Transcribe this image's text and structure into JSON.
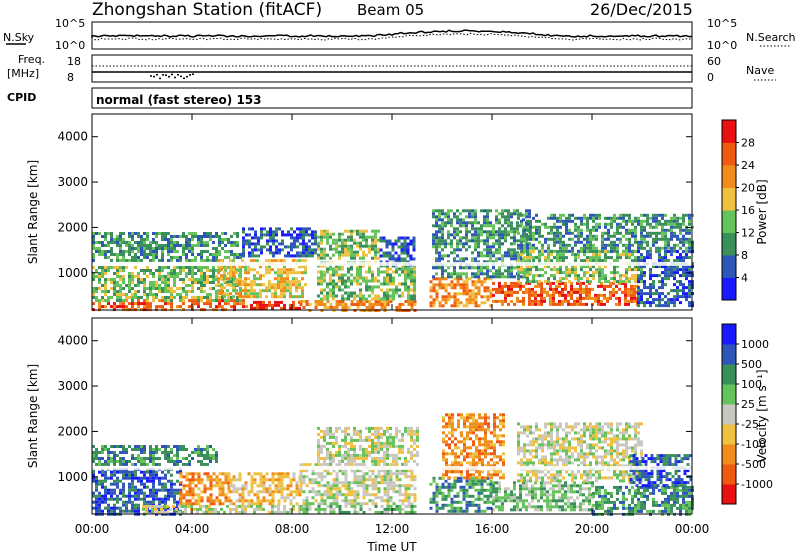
{
  "header": {
    "station": "Zhongshan Station (fitACF)",
    "beam": "Beam 05",
    "date": "26/Dec/2015"
  },
  "strip_labels": {
    "nsky": "N.Sky",
    "freq_line1": "Freq.",
    "freq_line2": "[MHz]",
    "cpid": "CPID",
    "nsearch": "N.Search",
    "nave": "Nave",
    "cpid_text": "normal (fast stereo) 153"
  },
  "strip_ticks": {
    "noise_left": [
      "10^5",
      "10^0"
    ],
    "noise_right": [
      "10^5",
      "10^0"
    ],
    "freq_left": [
      "18",
      "8"
    ],
    "freq_right": [
      "60",
      "0"
    ]
  },
  "colors": {
    "power": [
      "#1a1aff",
      "#2e55b8",
      "#3a8f5a",
      "#66c25a",
      "#f0c040",
      "#f08c1a",
      "#f05a10",
      "#e81010"
    ],
    "velocity": [
      "#e81010",
      "#f05a10",
      "#f08c1a",
      "#f0c040",
      "#c8c8c0",
      "#66c25a",
      "#3a8f5a",
      "#2e55b8",
      "#1a1aff"
    ],
    "velocity_ground": "#c8c8c0"
  },
  "chart_data": [
    {
      "type": "heatmap",
      "panel": "power",
      "ylabel": "Slant Range [km]",
      "xlabel": "",
      "yticks": [
        "4000",
        "3000",
        "2000",
        "1000"
      ],
      "ylim": [
        180,
        4500
      ],
      "xlim_hours": [
        0,
        24
      ],
      "colorbar_label": "Power [dB]",
      "colorbar_ticks": [
        "28",
        "24",
        "20",
        "16",
        "12",
        "8",
        "4"
      ],
      "colorbar_range": [
        0,
        32
      ],
      "regions": [
        {
          "t0": 0.0,
          "t1": 6.2,
          "r0": 200,
          "r1": 420,
          "level": 6
        },
        {
          "t0": 6.2,
          "t1": 8.3,
          "r0": 200,
          "r1": 380,
          "level": 7
        },
        {
          "t0": 8.3,
          "t1": 12.9,
          "r0": 200,
          "r1": 400,
          "level": 5
        },
        {
          "t0": 0.0,
          "t1": 6.0,
          "r0": 420,
          "r1": 1150,
          "level": 3
        },
        {
          "t0": 0.0,
          "t1": 6.0,
          "r0": 1250,
          "r1": 1900,
          "level": 2
        },
        {
          "t0": 5.0,
          "t1": 8.5,
          "r0": 500,
          "r1": 1300,
          "level": 4
        },
        {
          "t0": 6.0,
          "t1": 9.0,
          "r0": 1400,
          "r1": 2000,
          "level": 1
        },
        {
          "t0": 9.0,
          "t1": 12.9,
          "r0": 400,
          "r1": 1250,
          "level": 3
        },
        {
          "t0": 9.0,
          "t1": 11.5,
          "r0": 1300,
          "r1": 1950,
          "level": 3
        },
        {
          "t0": 11.5,
          "t1": 12.9,
          "r0": 1200,
          "r1": 1800,
          "level": 1
        },
        {
          "t0": 13.5,
          "t1": 16.0,
          "r0": 250,
          "r1": 900,
          "level": 5
        },
        {
          "t0": 13.6,
          "t1": 17.5,
          "r0": 900,
          "r1": 2400,
          "level": 2
        },
        {
          "t0": 16.0,
          "t1": 21.8,
          "r0": 280,
          "r1": 800,
          "level": 6
        },
        {
          "t0": 17.0,
          "t1": 22.0,
          "r0": 800,
          "r1": 1500,
          "level": 3
        },
        {
          "t0": 17.0,
          "t1": 24.0,
          "r0": 1500,
          "r1": 2300,
          "level": 2
        },
        {
          "t0": 21.8,
          "t1": 24.0,
          "r0": 250,
          "r1": 1500,
          "level": 1
        }
      ]
    },
    {
      "type": "heatmap",
      "panel": "velocity",
      "ylabel": "Slant Range [km]",
      "xlabel": "Time UT",
      "xticks": [
        "00:00",
        "04:00",
        "08:00",
        "12:00",
        "16:00",
        "20:00",
        "00:00"
      ],
      "xtick_hours": [
        0,
        4,
        8,
        12,
        16,
        20,
        24
      ],
      "yticks": [
        "4000",
        "3000",
        "2000",
        "1000"
      ],
      "ylim": [
        180,
        4500
      ],
      "xlim_hours": [
        0,
        24
      ],
      "colorbar_label": "Velocity [m s⁻¹]",
      "colorbar_ticks": [
        "1000",
        "500",
        "100",
        "25",
        "-25",
        "-100",
        "-500",
        "-1000"
      ],
      "colorbar_range": [
        -1200,
        1200
      ],
      "regions": [
        {
          "t0": 0.0,
          "t1": 3.5,
          "r0": 200,
          "r1": 1200,
          "level": 7
        },
        {
          "t0": 0.0,
          "t1": 5.0,
          "r0": 1250,
          "r1": 1700,
          "level": 6
        },
        {
          "t0": 3.5,
          "t1": 5.5,
          "r0": 400,
          "r1": 1100,
          "level": 2
        },
        {
          "t0": 5.5,
          "t1": 8.3,
          "r0": 400,
          "r1": 1100,
          "level": 3
        },
        {
          "t0": 2.0,
          "t1": 8.5,
          "r0": 200,
          "r1": 380,
          "level": 4
        },
        {
          "t0": 8.3,
          "t1": 12.9,
          "r0": 380,
          "r1": 1300,
          "level": 4
        },
        {
          "t0": 9.0,
          "t1": 13.0,
          "r0": 1300,
          "r1": 2100,
          "level": 4
        },
        {
          "t0": 8.3,
          "t1": 12.9,
          "r0": 200,
          "r1": 380,
          "level": 5
        },
        {
          "t0": 13.5,
          "t1": 16.0,
          "r0": 250,
          "r1": 1000,
          "level": 6
        },
        {
          "t0": 16.0,
          "t1": 20.0,
          "r0": 300,
          "r1": 900,
          "level": 5
        },
        {
          "t0": 14.0,
          "t1": 16.5,
          "r0": 1000,
          "r1": 2400,
          "level": 2
        },
        {
          "t0": 17.0,
          "t1": 22.0,
          "r0": 900,
          "r1": 2200,
          "level": 4
        },
        {
          "t0": 20.0,
          "t1": 24.0,
          "r0": 200,
          "r1": 800,
          "level": 6
        },
        {
          "t0": 21.5,
          "t1": 24.0,
          "r0": 800,
          "r1": 1500,
          "level": 7
        }
      ]
    }
  ]
}
